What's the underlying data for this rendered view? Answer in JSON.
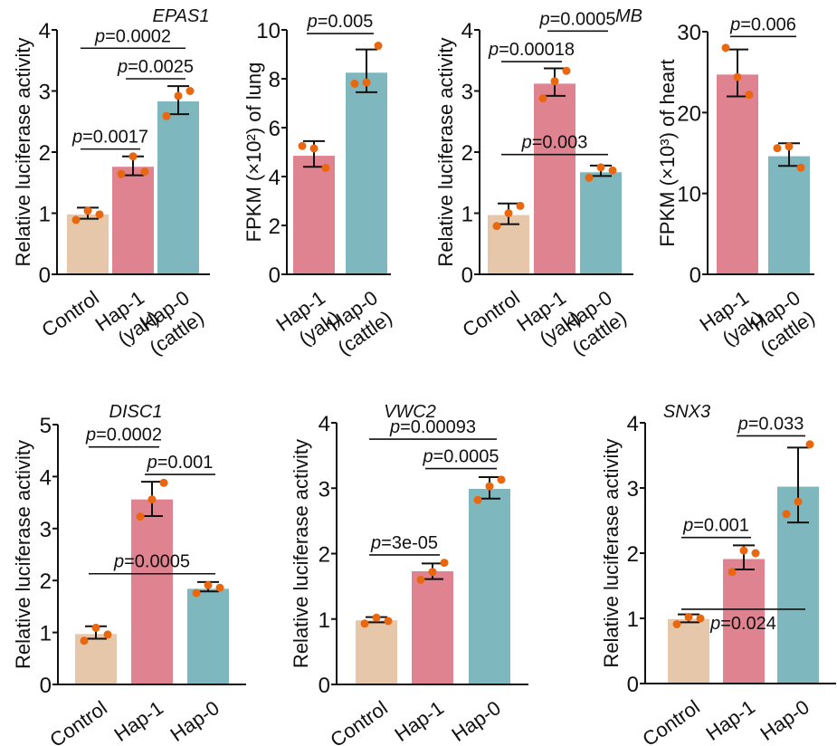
{
  "colors": {
    "control": "#e6c7aa",
    "hap1": "#e08391",
    "hap0": "#7fb7bf",
    "point": "#e8670f",
    "ink": "#111111"
  },
  "chart_data": [
    {
      "type": "bar",
      "id": "epas1-luc",
      "title": "EPAS1",
      "ylabel": "Relative luciferase activity",
      "ylim": [
        0,
        4
      ],
      "yticks": [
        "0",
        "1",
        "2",
        "3",
        "4"
      ],
      "categories": [
        [
          "Control"
        ],
        [
          "Hap-1",
          "(yak)"
        ],
        [
          "Hap-0",
          "(cattle)"
        ]
      ],
      "values": [
        0.98,
        1.76,
        2.83
      ],
      "err_low": [
        0.91,
        1.62,
        2.62
      ],
      "err_high": [
        1.09,
        1.93,
        3.08
      ],
      "points": [
        [
          0.89,
          1.04,
          0.98
        ],
        [
          1.64,
          1.93,
          1.68
        ],
        [
          2.59,
          2.92,
          3.0
        ]
      ],
      "comparisons": [
        {
          "from": 0,
          "to": 2,
          "label": "=0.0002",
          "y": 3.7
        },
        {
          "from": 1,
          "to": 2,
          "label": "=0.0025",
          "y": 3.2
        },
        {
          "from": 0,
          "to": 1,
          "label": "=0.0017",
          "y": 2.05
        }
      ]
    },
    {
      "type": "bar",
      "id": "epas1-fpkm",
      "title": "",
      "ylabel": "FPKM (×10²) of lung",
      "ylim": [
        0,
        10
      ],
      "yticks": [
        "0",
        "2",
        "4",
        "6",
        "8",
        "10"
      ],
      "categories": [
        [
          "Hap-1",
          "(yak)"
        ],
        [
          "Hap-0",
          "(cattle)"
        ]
      ],
      "values": [
        4.85,
        8.25
      ],
      "err_low": [
        4.4,
        7.45
      ],
      "err_high": [
        5.45,
        9.2
      ],
      "points": [
        [
          5.25,
          5.15,
          4.35
        ],
        [
          7.8,
          7.85,
          9.35
        ]
      ],
      "comparisons": [
        {
          "from": 0,
          "to": 1,
          "label": "=0.005",
          "y": 9.85
        }
      ]
    },
    {
      "type": "bar",
      "id": "mb-luc",
      "title": "MB",
      "ylabel": "Relative luciferase activity",
      "ylim": [
        0,
        4
      ],
      "yticks": [
        "0",
        "1",
        "2",
        "3",
        "4"
      ],
      "categories": [
        [
          "Control"
        ],
        [
          "Hap-1",
          "(yak)"
        ],
        [
          "Hap-0",
          "(cattle)"
        ]
      ],
      "values": [
        0.97,
        3.12,
        1.67
      ],
      "err_low": [
        0.82,
        2.92,
        1.61
      ],
      "err_high": [
        1.16,
        3.37,
        1.78
      ],
      "points": [
        [
          0.79,
          1.0,
          1.12
        ],
        [
          2.88,
          3.16,
          3.33
        ],
        [
          1.58,
          1.75,
          1.7
        ]
      ],
      "comparisons": [
        {
          "from": 1,
          "to": 2,
          "label": "=0.0005",
          "y": 3.98
        },
        {
          "from": 0,
          "to": 1,
          "label": "=0.00018",
          "y": 3.48
        },
        {
          "from": 0,
          "to": 2,
          "label": "=0.003",
          "y": 1.96
        }
      ]
    },
    {
      "type": "bar",
      "id": "mb-fpkm",
      "title": "",
      "ylabel": "FPKM (×10³) of heart",
      "ylim": [
        0,
        30
      ],
      "yticks": [
        "0",
        "10",
        "20",
        "30"
      ],
      "categories": [
        [
          "Hap-1",
          "(yak)"
        ],
        [
          "Hap-0",
          "(cattle)"
        ]
      ],
      "values": [
        24.7,
        14.6
      ],
      "err_low": [
        22.0,
        13.4
      ],
      "err_high": [
        27.8,
        16.2
      ],
      "points": [
        [
          28.0,
          24.4,
          22.2
        ],
        [
          15.6,
          15.8,
          13.2
        ]
      ],
      "comparisons": [
        {
          "from": 0,
          "to": 1,
          "label": "=0.006",
          "y": 29.4
        }
      ]
    },
    {
      "type": "bar",
      "id": "disc1-luc",
      "title": "DISC1",
      "ylabel": "Relative luciferase activity",
      "ylim": [
        0,
        5
      ],
      "yticks": [
        "0",
        "1",
        "2",
        "3",
        "4",
        "5"
      ],
      "categories": [
        [
          "Control"
        ],
        [
          "Hap-1"
        ],
        [
          "Hap-0"
        ]
      ],
      "values": [
        0.97,
        3.56,
        1.84
      ],
      "err_low": [
        0.88,
        3.24,
        1.79
      ],
      "err_high": [
        1.12,
        3.9,
        1.97
      ],
      "points": [
        [
          0.84,
          1.09,
          0.96
        ],
        [
          3.23,
          3.56,
          3.88
        ],
        [
          1.76,
          1.91,
          1.86
        ]
      ],
      "comparisons": [
        {
          "from": 0,
          "to": 1,
          "label": "=0.0002",
          "y": 4.57
        },
        {
          "from": 1,
          "to": 2,
          "label": "=0.001",
          "y": 4.04
        },
        {
          "from": 0,
          "to": 2,
          "label": "=0.0005",
          "y": 2.13
        }
      ]
    },
    {
      "type": "bar",
      "id": "vwc2-luc",
      "title": "VWC2",
      "ylabel": "Relative luciferase activity",
      "ylim": [
        0,
        4
      ],
      "yticks": [
        "0",
        "1",
        "2",
        "3",
        "4"
      ],
      "categories": [
        [
          "Control"
        ],
        [
          "Hap-1"
        ],
        [
          "Hap-0"
        ]
      ],
      "values": [
        0.98,
        1.73,
        2.99
      ],
      "err_low": [
        0.95,
        1.61,
        2.84
      ],
      "err_high": [
        1.03,
        1.85,
        3.17
      ],
      "points": [
        [
          0.93,
          1.02,
          0.97
        ],
        [
          1.6,
          1.72,
          1.86
        ],
        [
          2.82,
          3.03,
          3.13
        ]
      ],
      "comparisons": [
        {
          "from": 0,
          "to": 2,
          "label": "=0.00093",
          "y": 3.75
        },
        {
          "from": 1,
          "to": 2,
          "label": "=0.0005",
          "y": 3.3
        },
        {
          "from": 0,
          "to": 1,
          "label": "=3e-05",
          "y": 1.98
        }
      ]
    },
    {
      "type": "bar",
      "id": "snx3-luc",
      "title": "SNX3",
      "ylabel": "Relative luciferase activity",
      "ylim": [
        0,
        4
      ],
      "yticks": [
        "0",
        "1",
        "2",
        "3",
        "4"
      ],
      "categories": [
        [
          "Control"
        ],
        [
          "Hap-1"
        ],
        [
          "Hap-0"
        ]
      ],
      "values": [
        0.99,
        1.91,
        3.02
      ],
      "err_low": [
        0.94,
        1.75,
        2.47
      ],
      "err_high": [
        1.06,
        2.12,
        3.62
      ],
      "points": [
        [
          0.91,
          1.02,
          1.0
        ],
        [
          1.71,
          2.04,
          2.0
        ],
        [
          2.6,
          2.79,
          3.67
        ]
      ],
      "comparisons": [
        {
          "from": 1,
          "to": 2,
          "label": "=0.033",
          "y": 3.8
        },
        {
          "from": 0,
          "to": 1,
          "label": "=0.001",
          "y": 2.24
        },
        {
          "from": 0,
          "to": 2,
          "label": "=0.024",
          "y": 1.14,
          "label_below": true
        }
      ]
    }
  ]
}
